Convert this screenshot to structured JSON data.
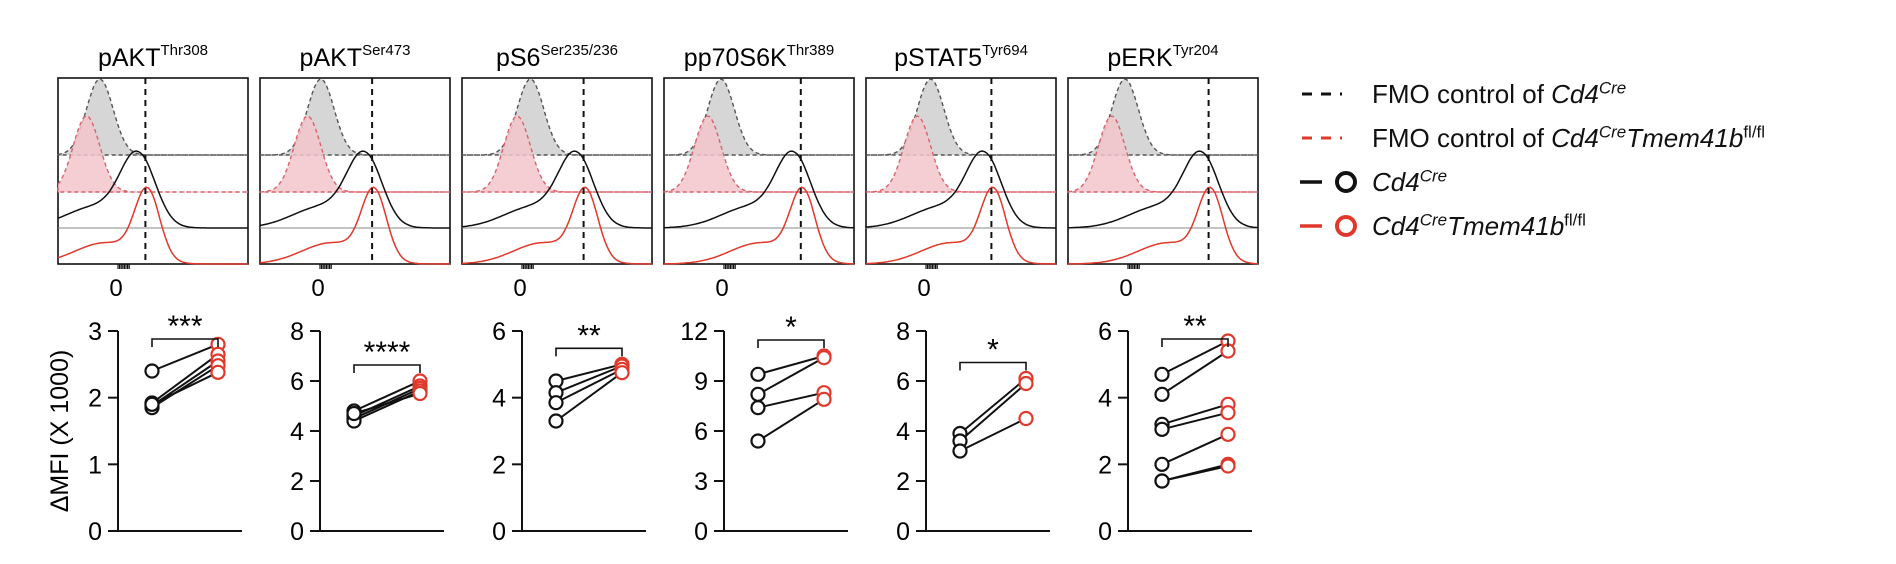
{
  "colors": {
    "black": "#111111",
    "red": "#e0392b",
    "redFill": "#f2c6cb",
    "greyFill": "#d6d6d6"
  },
  "legend": [
    {
      "key": "fmo_cre",
      "style": "dashed-black",
      "text_plain": "FMO control of ",
      "text_italic": "Cd4",
      "text_sup": "Cre",
      "text_italic2": "",
      "text_sup2": ""
    },
    {
      "key": "fmo_fl",
      "style": "dashed-red",
      "text_plain": "FMO control of ",
      "text_italic": "Cd4",
      "text_sup": "Cre",
      "text_italic2": "Tmem41b",
      "text_sup2": "fl/fl"
    },
    {
      "key": "cre",
      "style": "solid-black-circle",
      "text_plain": "",
      "text_italic": "Cd4",
      "text_sup": "Cre",
      "text_italic2": "",
      "text_sup2": ""
    },
    {
      "key": "fl",
      "style": "solid-red-circle",
      "text_plain": "",
      "text_italic": "Cd4",
      "text_sup": "Cre",
      "text_italic2": "Tmem41b",
      "text_sup2": "fl/fl"
    }
  ],
  "chart_data": [
    {
      "type": "scatter",
      "title": "pAKT",
      "title_sup": "Thr308",
      "hist_zero_label": "0",
      "ylabel": "ΔMFI (X 1000)",
      "ylim": [
        0,
        3
      ],
      "yticks": [
        "0",
        "1",
        "2",
        "3"
      ],
      "significance": "***",
      "pairs": [
        [
          2.4,
          2.8
        ],
        [
          1.92,
          2.65
        ],
        [
          1.88,
          2.55
        ],
        [
          1.85,
          2.48
        ],
        [
          1.9,
          2.38
        ]
      ]
    },
    {
      "type": "scatter",
      "title": "pAKT",
      "title_sup": "Ser473",
      "hist_zero_label": "0",
      "ylabel": "",
      "ylim": [
        0,
        8
      ],
      "yticks": [
        "0",
        "2",
        "4",
        "6",
        "8"
      ],
      "significance": "****",
      "pairs": [
        [
          4.8,
          6.0
        ],
        [
          4.6,
          5.8
        ],
        [
          4.5,
          5.7
        ],
        [
          4.4,
          5.6
        ],
        [
          4.7,
          5.5
        ]
      ]
    },
    {
      "type": "scatter",
      "title": "pS6",
      "title_sup": "Ser235/236",
      "hist_zero_label": "0",
      "ylabel": "",
      "ylim": [
        0,
        6
      ],
      "yticks": [
        "0",
        "2",
        "4",
        "6"
      ],
      "significance": "**",
      "pairs": [
        [
          4.5,
          5.0
        ],
        [
          4.15,
          4.95
        ],
        [
          3.85,
          4.85
        ],
        [
          3.3,
          4.75
        ]
      ]
    },
    {
      "type": "scatter",
      "title": "pp70S6K",
      "title_sup": "Thr389",
      "hist_zero_label": "0",
      "ylabel": "",
      "ylim": [
        0,
        12
      ],
      "yticks": [
        "0",
        "3",
        "6",
        "9",
        "12"
      ],
      "significance": "*",
      "pairs": [
        [
          9.4,
          10.5
        ],
        [
          8.2,
          10.4
        ],
        [
          7.4,
          8.3
        ],
        [
          5.4,
          7.9
        ]
      ]
    },
    {
      "type": "scatter",
      "title": "pSTAT5",
      "title_sup": "Tyr694",
      "hist_zero_label": "0",
      "ylabel": "",
      "ylim": [
        0,
        8
      ],
      "yticks": [
        "0",
        "2",
        "4",
        "6",
        "8"
      ],
      "significance": "*",
      "pairs": [
        [
          3.9,
          6.1
        ],
        [
          3.6,
          5.9
        ],
        [
          3.2,
          4.5
        ]
      ]
    },
    {
      "type": "scatter",
      "title": "pERK",
      "title_sup": "Tyr204",
      "hist_zero_label": "0",
      "ylabel": "",
      "ylim": [
        0,
        6
      ],
      "yticks": [
        "0",
        "2",
        "4",
        "6"
      ],
      "significance": "**",
      "pairs": [
        [
          4.7,
          5.7
        ],
        [
          4.1,
          5.4
        ],
        [
          3.2,
          3.8
        ],
        [
          3.05,
          3.55
        ],
        [
          2.0,
          2.9
        ],
        [
          1.5,
          2.0
        ],
        [
          1.5,
          1.95
        ]
      ]
    }
  ]
}
